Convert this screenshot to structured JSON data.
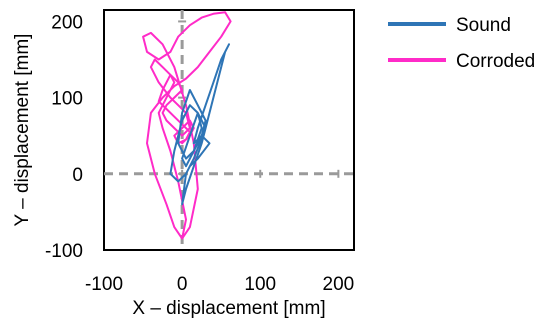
{
  "chart_data": {
    "type": "line",
    "xlabel": "X – displacement [mm]",
    "ylabel": "Y – displacement [mm]",
    "xlim": [
      -100,
      220
    ],
    "ylim": [
      -100,
      215
    ],
    "xticks": [
      -100,
      0,
      100,
      200
    ],
    "yticks": [
      -100,
      0,
      100,
      200
    ],
    "reference_lines": {
      "x": 0,
      "y": 0,
      "style": "dashed",
      "color": "#9a9a9a"
    },
    "legend_position": "right",
    "series": [
      {
        "name": "Sound",
        "color": "#2e75b6",
        "x": [
          0,
          5,
          15,
          25,
          30,
          20,
          10,
          0,
          -10,
          -15,
          -5,
          5,
          15,
          30,
          45,
          55,
          60,
          50,
          40,
          30,
          20,
          15,
          25,
          30,
          20,
          10,
          0,
          -5,
          5,
          15,
          25,
          20,
          10,
          0,
          5,
          15,
          25,
          35,
          20,
          10,
          5,
          0
        ],
        "y": [
          -40,
          -20,
          10,
          40,
          60,
          80,
          90,
          70,
          30,
          0,
          -10,
          0,
          20,
          60,
          120,
          160,
          170,
          150,
          120,
          90,
          60,
          40,
          50,
          70,
          90,
          110,
          80,
          40,
          20,
          30,
          60,
          80,
          50,
          20,
          10,
          30,
          50,
          40,
          20,
          10,
          0,
          -40
        ]
      },
      {
        "name": "Corroded",
        "color": "#ff2bc8",
        "x": [
          0,
          10,
          20,
          15,
          5,
          -10,
          -25,
          -40,
          -50,
          -45,
          -30,
          -15,
          -5,
          10,
          25,
          40,
          55,
          62,
          50,
          35,
          20,
          5,
          -10,
          -25,
          -40,
          -45,
          -35,
          -20,
          -10,
          0,
          5,
          -5,
          -15,
          -25,
          -30,
          -20,
          -10,
          -15,
          -25,
          -35,
          -40,
          -30,
          -15,
          -5,
          5,
          10,
          0,
          -10,
          -20,
          -25,
          -20,
          -10,
          0,
          -5,
          -15,
          -25,
          -30,
          -20,
          -10,
          0,
          10,
          5,
          -5,
          -10,
          0,
          10,
          15,
          10,
          0
        ],
        "y": [
          -85,
          -70,
          -20,
          40,
          90,
          140,
          170,
          185,
          180,
          160,
          150,
          160,
          180,
          195,
          205,
          210,
          212,
          200,
          180,
          160,
          140,
          125,
          115,
          100,
          80,
          40,
          0,
          -40,
          -70,
          -85,
          -60,
          -10,
          30,
          60,
          80,
          100,
          120,
          130,
          140,
          150,
          140,
          120,
          100,
          90,
          80,
          60,
          50,
          60,
          70,
          80,
          90,
          100,
          110,
          120,
          130,
          110,
          95,
          85,
          75,
          65,
          55,
          45,
          40,
          50,
          60,
          70,
          60,
          50,
          40
        ]
      }
    ]
  }
}
